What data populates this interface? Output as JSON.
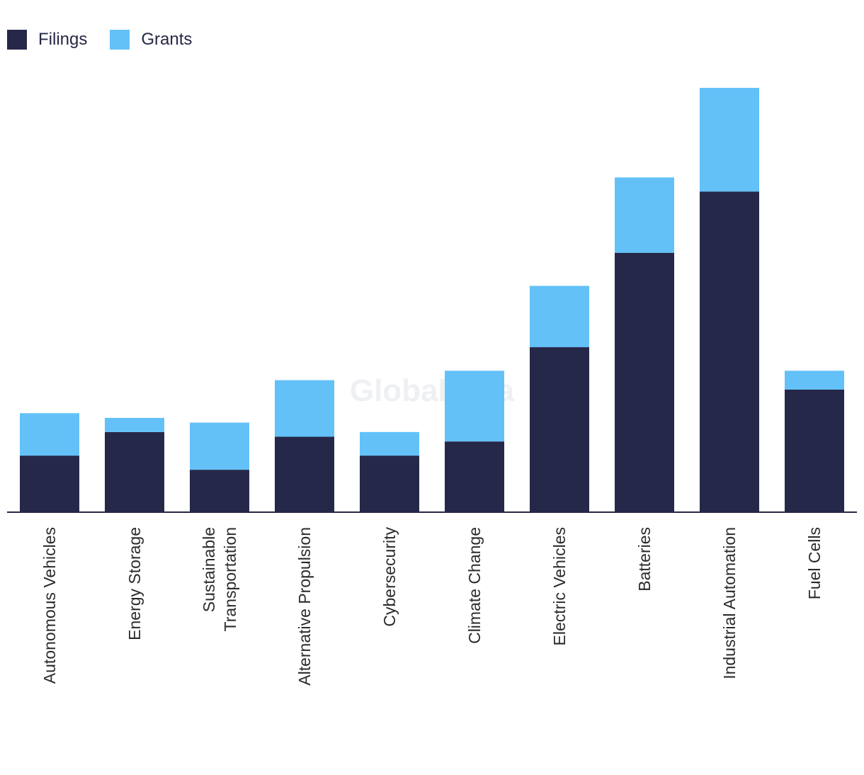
{
  "colors": {
    "filings": "#262849",
    "grants": "#63C1F8",
    "axis": "#262845",
    "text": "#2b2b2b"
  },
  "legend": {
    "filings_label": "Filings",
    "grants_label": "Grants"
  },
  "watermark": "GlobalData",
  "chart_data": {
    "type": "bar",
    "stacked": true,
    "title": "",
    "xlabel": "",
    "ylabel": "",
    "ylim": [
      0,
      100
    ],
    "grid": false,
    "legend_position": "top-left",
    "categories": [
      "Autonomous Vehicles",
      "Energy Storage",
      "Sustainable Transportation",
      "Alternative Propulsion",
      "Cybersecurity",
      "Climate Change",
      "Electric Vehicles",
      "Batteries",
      "Industrial Automation",
      "Fuel Cells"
    ],
    "category_lines": [
      [
        "Autonomous Vehicles"
      ],
      [
        "Energy Storage"
      ],
      [
        "Sustainable",
        "Transportation"
      ],
      [
        "Alternative Propulsion"
      ],
      [
        "Cybersecurity"
      ],
      [
        "Climate Change"
      ],
      [
        "Electric Vehicles"
      ],
      [
        "Batteries"
      ],
      [
        "Industrial Automation"
      ],
      [
        "Fuel Cells"
      ]
    ],
    "series": [
      {
        "name": "Filings",
        "values": [
          12,
          17,
          9,
          16,
          12,
          15,
          35,
          55,
          68,
          26
        ]
      },
      {
        "name": "Grants",
        "values": [
          9,
          3,
          10,
          12,
          5,
          15,
          13,
          16,
          22,
          4
        ]
      }
    ]
  }
}
